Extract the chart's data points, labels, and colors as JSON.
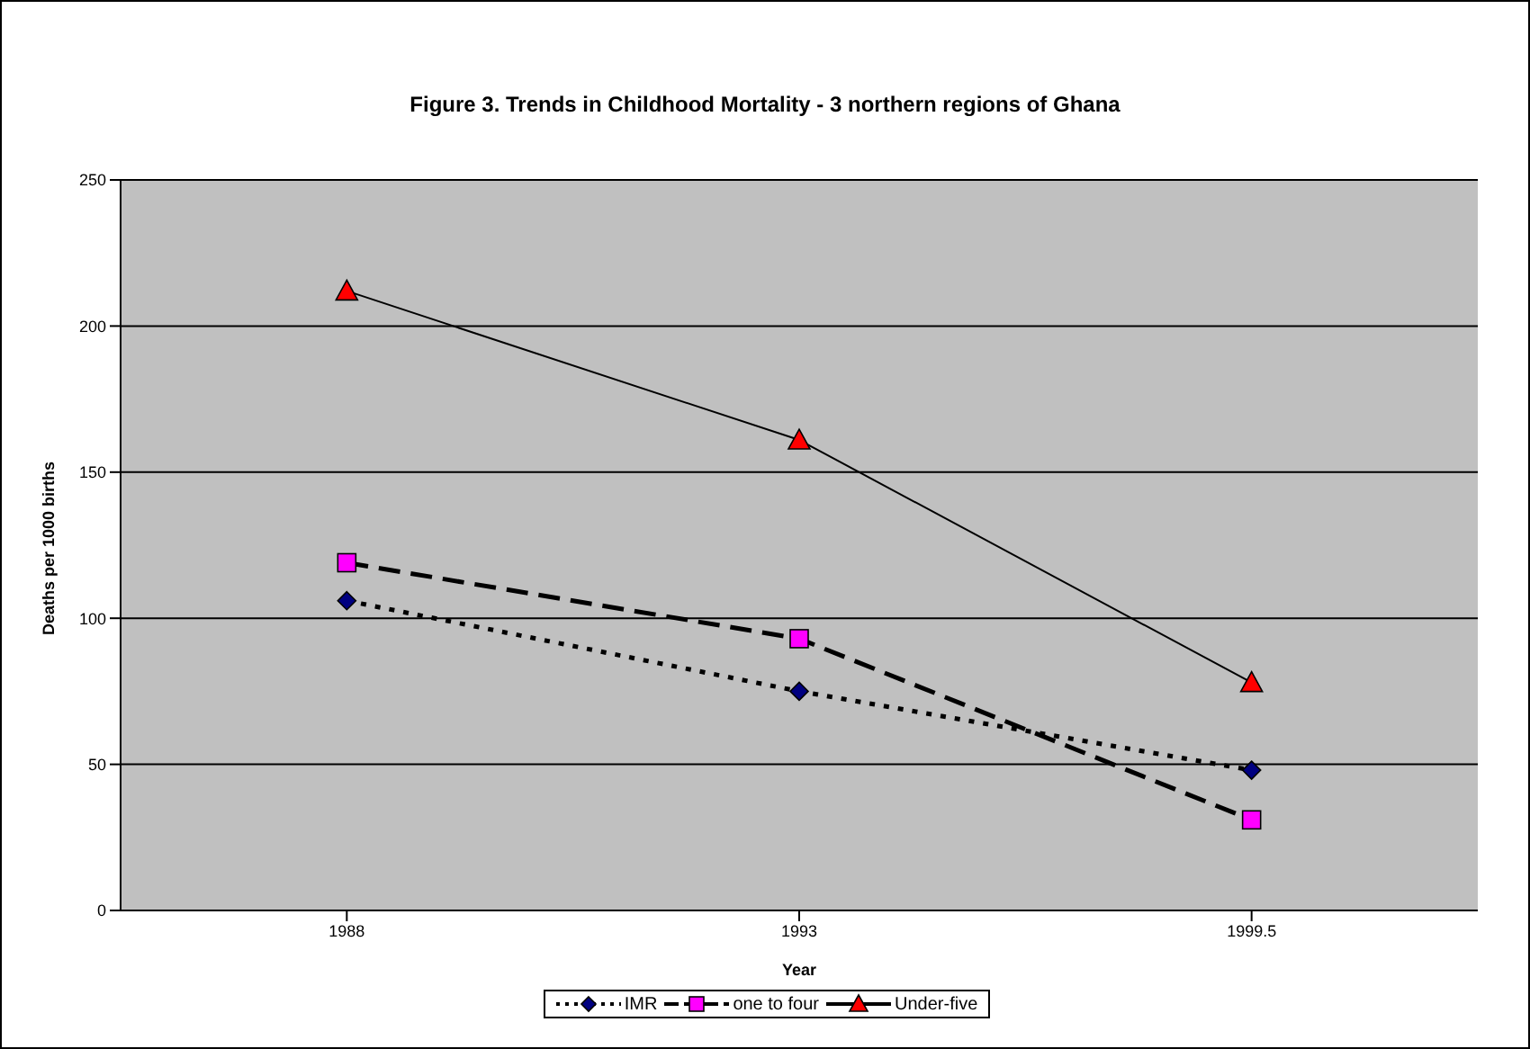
{
  "chart_data": {
    "type": "line",
    "title": "Figure 3. Trends in Childhood Mortality - 3 northern regions of Ghana",
    "xlabel": "Year",
    "ylabel": "Deaths per 1000 births",
    "categories": [
      "1988",
      "1993",
      "1999.5"
    ],
    "series": [
      {
        "name": "IMR",
        "color": "#000080",
        "values": [
          106,
          75,
          48
        ],
        "marker": "diamond",
        "line_style": "dotted"
      },
      {
        "name": "one to four",
        "color": "#ff00ff",
        "values": [
          119,
          93,
          31
        ],
        "marker": "square",
        "line_style": "dashed"
      },
      {
        "name": "Under-five",
        "color": "#ff0000",
        "values": [
          212,
          161,
          78
        ],
        "marker": "triangle",
        "line_style": "solid"
      }
    ],
    "ylim": [
      0,
      250
    ],
    "yticks": [
      0,
      50,
      100,
      150,
      200,
      250
    ],
    "grid": "y",
    "legend": "bottom"
  }
}
